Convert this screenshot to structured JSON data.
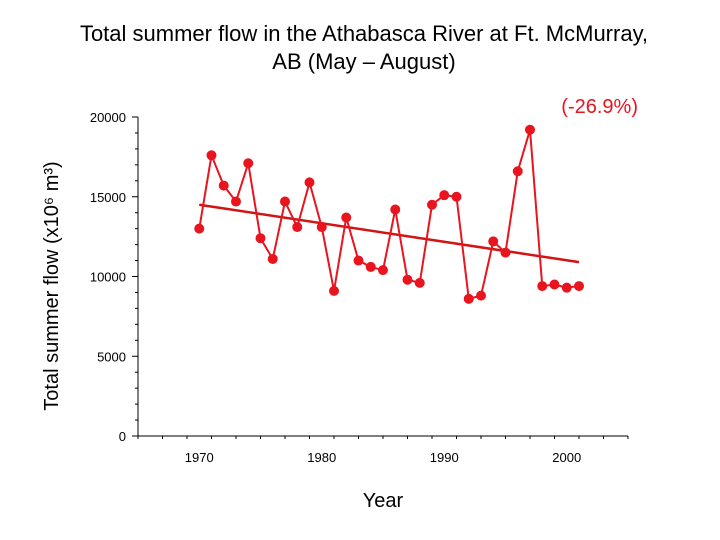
{
  "chart_data": {
    "type": "scatter",
    "title_line1": "Total summer flow in the Athabasca River at Ft. McMurray,",
    "title_line2": "AB (May – August)",
    "xlabel": "Year",
    "ylabel": "Total summer flow (x10⁶ m³)",
    "annotation": "(-26.9%)",
    "xlim": [
      1965,
      2005
    ],
    "ylim": [
      0,
      20000
    ],
    "x_ticks": [
      1970,
      1980,
      1990,
      2000
    ],
    "y_ticks": [
      0,
      5000,
      10000,
      15000,
      20000
    ],
    "series": [
      {
        "x": [
          1970,
          1971,
          1972,
          1973,
          1974,
          1975,
          1976,
          1977,
          1978,
          1979,
          1980,
          1981,
          1982,
          1983,
          1984,
          1985,
          1986,
          1987,
          1988,
          1989,
          1990,
          1991,
          1992,
          1993,
          1994,
          1995,
          1996,
          1997,
          1998,
          1999,
          2000,
          2001
        ],
        "y": [
          13000,
          17600,
          15700,
          14700,
          17100,
          12400,
          11100,
          14700,
          13100,
          15900,
          13100,
          9100,
          13700,
          11000,
          10600,
          10400,
          14200,
          9800,
          9600,
          14500,
          15100,
          15000,
          8600,
          8800,
          12200,
          11500,
          16600,
          19200,
          9400,
          9500,
          9300,
          9400
        ],
        "color": "#e8141e"
      }
    ],
    "trend": {
      "x": [
        1970,
        2001
      ],
      "y": [
        14500,
        10900
      ],
      "color": "#d21414"
    },
    "grid": false
  }
}
